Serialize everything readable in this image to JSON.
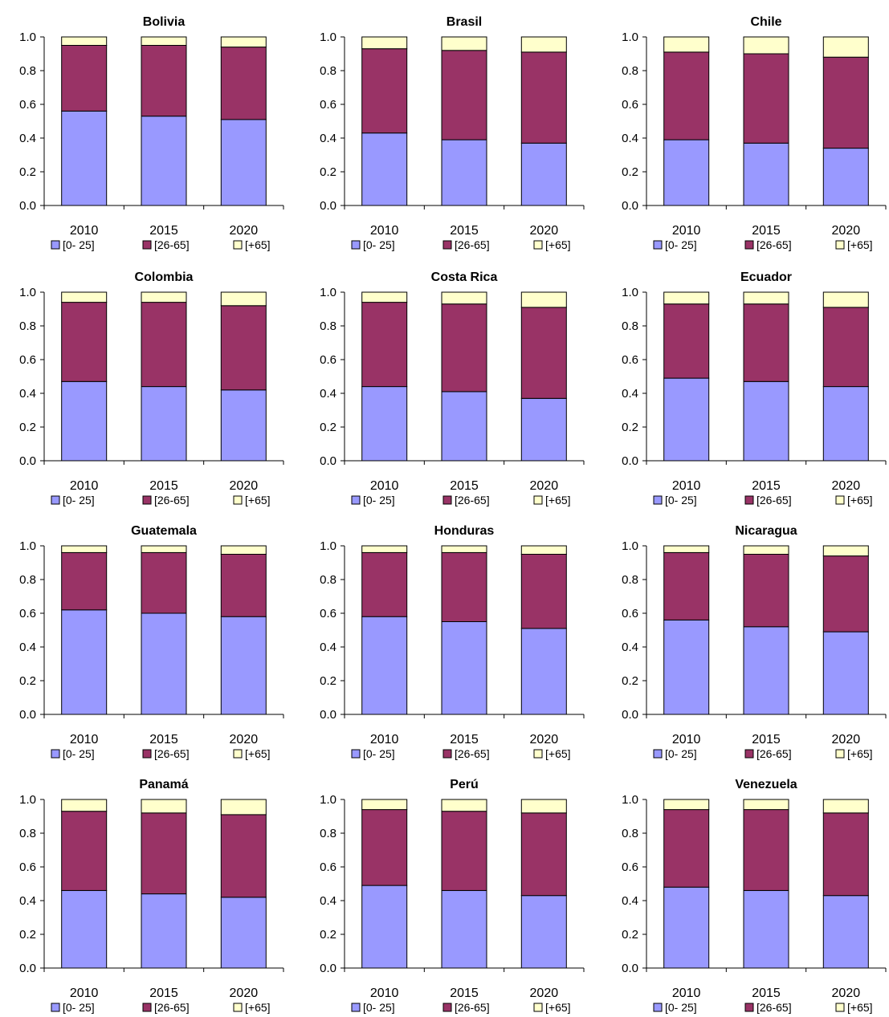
{
  "colors": {
    "young": "#9999FF",
    "adult": "#993366",
    "old": "#FFFFCC",
    "edge": "#000000"
  },
  "chart_data": [
    {
      "type": "bar",
      "stacked": true,
      "title": "Bolivia",
      "categories": [
        "2010",
        "2015",
        "2020"
      ],
      "ylim": [
        0,
        1
      ],
      "yticks": [
        "0.0",
        "0.2",
        "0.4",
        "0.6",
        "0.8",
        "1.0"
      ],
      "legend": "bottom",
      "series": [
        {
          "name": "[0- 25]",
          "values": [
            0.56,
            0.53,
            0.51
          ]
        },
        {
          "name": "[26-65]",
          "values": [
            0.39,
            0.42,
            0.43
          ]
        },
        {
          "name": "[+65]",
          "values": [
            0.05,
            0.05,
            0.06
          ]
        }
      ]
    },
    {
      "type": "bar",
      "stacked": true,
      "title": "Brasil",
      "categories": [
        "2010",
        "2015",
        "2020"
      ],
      "ylim": [
        0,
        1
      ],
      "yticks": [
        "0.0",
        "0.2",
        "0.4",
        "0.6",
        "0.8",
        "1.0"
      ],
      "legend": "bottom",
      "series": [
        {
          "name": "[0- 25]",
          "values": [
            0.43,
            0.39,
            0.37
          ]
        },
        {
          "name": "[26-65]",
          "values": [
            0.5,
            0.53,
            0.54
          ]
        },
        {
          "name": "[+65]",
          "values": [
            0.07,
            0.08,
            0.09
          ]
        }
      ]
    },
    {
      "type": "bar",
      "stacked": true,
      "title": "Chile",
      "categories": [
        "2010",
        "2015",
        "2020"
      ],
      "ylim": [
        0,
        1
      ],
      "yticks": [
        "0.0",
        "0.2",
        "0.4",
        "0.6",
        "0.8",
        "1.0"
      ],
      "legend": "bottom",
      "series": [
        {
          "name": "[0- 25]",
          "values": [
            0.39,
            0.37,
            0.34
          ]
        },
        {
          "name": "[26-65]",
          "values": [
            0.52,
            0.53,
            0.54
          ]
        },
        {
          "name": "[+65]",
          "values": [
            0.09,
            0.1,
            0.12
          ]
        }
      ]
    },
    {
      "type": "bar",
      "stacked": true,
      "title": "Colombia",
      "categories": [
        "2010",
        "2015",
        "2020"
      ],
      "ylim": [
        0,
        1
      ],
      "yticks": [
        "0.0",
        "0.2",
        "0.4",
        "0.6",
        "0.8",
        "1.0"
      ],
      "legend": "bottom",
      "series": [
        {
          "name": "[0- 25]",
          "values": [
            0.47,
            0.44,
            0.42
          ]
        },
        {
          "name": "[26-65]",
          "values": [
            0.47,
            0.5,
            0.5
          ]
        },
        {
          "name": "[+65]",
          "values": [
            0.06,
            0.06,
            0.08
          ]
        }
      ]
    },
    {
      "type": "bar",
      "stacked": true,
      "title": "Costa Rica",
      "categories": [
        "2010",
        "2015",
        "2020"
      ],
      "ylim": [
        0,
        1
      ],
      "yticks": [
        "0.0",
        "0.2",
        "0.4",
        "0.6",
        "0.8",
        "1.0"
      ],
      "legend": "bottom",
      "series": [
        {
          "name": "[0- 25]",
          "values": [
            0.44,
            0.41,
            0.37
          ]
        },
        {
          "name": "[26-65]",
          "values": [
            0.5,
            0.52,
            0.54
          ]
        },
        {
          "name": "[+65]",
          "values": [
            0.06,
            0.07,
            0.09
          ]
        }
      ]
    },
    {
      "type": "bar",
      "stacked": true,
      "title": "Ecuador",
      "categories": [
        "2010",
        "2015",
        "2020"
      ],
      "ylim": [
        0,
        1
      ],
      "yticks": [
        "0.0",
        "0.2",
        "0.4",
        "0.6",
        "0.8",
        "1.0"
      ],
      "legend": "bottom",
      "series": [
        {
          "name": "[0- 25]",
          "values": [
            0.49,
            0.47,
            0.44
          ]
        },
        {
          "name": "[26-65]",
          "values": [
            0.44,
            0.46,
            0.47
          ]
        },
        {
          "name": "[+65]",
          "values": [
            0.07,
            0.07,
            0.09
          ]
        }
      ]
    },
    {
      "type": "bar",
      "stacked": true,
      "title": "Guatemala",
      "categories": [
        "2010",
        "2015",
        "2020"
      ],
      "ylim": [
        0,
        1
      ],
      "yticks": [
        "0.0",
        "0.2",
        "0.4",
        "0.6",
        "0.8",
        "1.0"
      ],
      "legend": "bottom",
      "series": [
        {
          "name": "[0- 25]",
          "values": [
            0.62,
            0.6,
            0.58
          ]
        },
        {
          "name": "[26-65]",
          "values": [
            0.34,
            0.36,
            0.37
          ]
        },
        {
          "name": "[+65]",
          "values": [
            0.04,
            0.04,
            0.05
          ]
        }
      ]
    },
    {
      "type": "bar",
      "stacked": true,
      "title": "Honduras",
      "categories": [
        "2010",
        "2015",
        "2020"
      ],
      "ylim": [
        0,
        1
      ],
      "yticks": [
        "0.0",
        "0.2",
        "0.4",
        "0.6",
        "0.8",
        "1.0"
      ],
      "legend": "bottom",
      "series": [
        {
          "name": "[0- 25]",
          "values": [
            0.58,
            0.55,
            0.51
          ]
        },
        {
          "name": "[26-65]",
          "values": [
            0.38,
            0.41,
            0.44
          ]
        },
        {
          "name": "[+65]",
          "values": [
            0.04,
            0.04,
            0.05
          ]
        }
      ]
    },
    {
      "type": "bar",
      "stacked": true,
      "title": "Nicaragua",
      "categories": [
        "2010",
        "2015",
        "2020"
      ],
      "ylim": [
        0,
        1
      ],
      "yticks": [
        "0.0",
        "0.2",
        "0.4",
        "0.6",
        "0.8",
        "1.0"
      ],
      "legend": "bottom",
      "series": [
        {
          "name": "[0- 25]",
          "values": [
            0.56,
            0.52,
            0.49
          ]
        },
        {
          "name": "[26-65]",
          "values": [
            0.4,
            0.43,
            0.45
          ]
        },
        {
          "name": "[+65]",
          "values": [
            0.04,
            0.05,
            0.06
          ]
        }
      ]
    },
    {
      "type": "bar",
      "stacked": true,
      "title": "Panamá",
      "categories": [
        "2010",
        "2015",
        "2020"
      ],
      "ylim": [
        0,
        1
      ],
      "yticks": [
        "0.0",
        "0.2",
        "0.4",
        "0.6",
        "0.8",
        "1.0"
      ],
      "legend": "bottom",
      "series": [
        {
          "name": "[0- 25]",
          "values": [
            0.46,
            0.44,
            0.42
          ]
        },
        {
          "name": "[26-65]",
          "values": [
            0.47,
            0.48,
            0.49
          ]
        },
        {
          "name": "[+65]",
          "values": [
            0.07,
            0.08,
            0.09
          ]
        }
      ]
    },
    {
      "type": "bar",
      "stacked": true,
      "title": "Perú",
      "categories": [
        "2010",
        "2015",
        "2020"
      ],
      "ylim": [
        0,
        1
      ],
      "yticks": [
        "0.0",
        "0.2",
        "0.4",
        "0.6",
        "0.8",
        "1.0"
      ],
      "legend": "bottom",
      "series": [
        {
          "name": "[0- 25]",
          "values": [
            0.49,
            0.46,
            0.43
          ]
        },
        {
          "name": "[26-65]",
          "values": [
            0.45,
            0.47,
            0.49
          ]
        },
        {
          "name": "[+65]",
          "values": [
            0.06,
            0.07,
            0.08
          ]
        }
      ]
    },
    {
      "type": "bar",
      "stacked": true,
      "title": "Venezuela",
      "categories": [
        "2010",
        "2015",
        "2020"
      ],
      "ylim": [
        0,
        1
      ],
      "yticks": [
        "0.0",
        "0.2",
        "0.4",
        "0.6",
        "0.8",
        "1.0"
      ],
      "legend": "bottom",
      "series": [
        {
          "name": "[0- 25]",
          "values": [
            0.48,
            0.46,
            0.43
          ]
        },
        {
          "name": "[26-65]",
          "values": [
            0.46,
            0.48,
            0.49
          ]
        },
        {
          "name": "[+65]",
          "values": [
            0.06,
            0.06,
            0.08
          ]
        }
      ]
    }
  ]
}
